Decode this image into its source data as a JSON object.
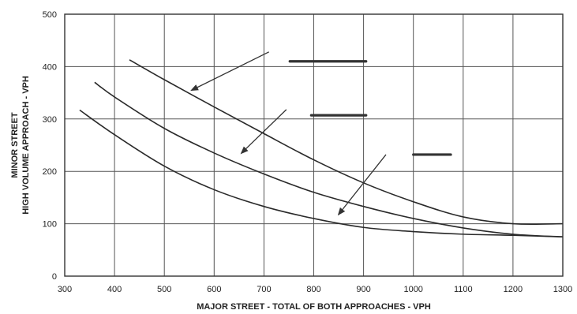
{
  "chart_data": {
    "type": "line",
    "title": "",
    "xlabel": "MAJOR STREET - TOTAL OF BOTH APPROACHES - VPH",
    "ylabel_line1": "MINOR STREET",
    "ylabel_line2": "HIGH VOLUME APPROACH - VPH",
    "xlim": [
      300,
      1300
    ],
    "ylim": [
      0,
      500
    ],
    "x_ticks": [
      300,
      400,
      500,
      600,
      700,
      800,
      900,
      1000,
      1100,
      1200,
      1300
    ],
    "y_ticks": [
      0,
      100,
      200,
      300,
      400,
      500
    ],
    "grid": true,
    "series": [
      {
        "points": [
          [
            430,
            413
          ],
          [
            500,
            375
          ],
          [
            600,
            323
          ],
          [
            700,
            272
          ],
          [
            800,
            222
          ],
          [
            900,
            178
          ],
          [
            1000,
            142
          ],
          [
            1100,
            113
          ],
          [
            1200,
            100
          ],
          [
            1300,
            100
          ]
        ]
      },
      {
        "points": [
          [
            360,
            370
          ],
          [
            400,
            342
          ],
          [
            500,
            282
          ],
          [
            600,
            235
          ],
          [
            700,
            195
          ],
          [
            800,
            160
          ],
          [
            900,
            133
          ],
          [
            1000,
            110
          ],
          [
            1100,
            92
          ],
          [
            1200,
            80
          ],
          [
            1300,
            75
          ]
        ]
      },
      {
        "points": [
          [
            330,
            317
          ],
          [
            400,
            270
          ],
          [
            500,
            210
          ],
          [
            600,
            165
          ],
          [
            700,
            133
          ],
          [
            800,
            110
          ],
          [
            900,
            93
          ],
          [
            1000,
            85
          ],
          [
            1100,
            80
          ],
          [
            1200,
            78
          ],
          [
            1300,
            75
          ]
        ]
      }
    ],
    "annotation_arrows": [
      {
        "from": [
          710,
          428
        ],
        "to": [
          555,
          355
        ]
      },
      {
        "from": [
          745,
          318
        ],
        "to": [
          655,
          235
        ]
      },
      {
        "from": [
          945,
          232
        ],
        "to": [
          850,
          118
        ]
      }
    ],
    "redaction_marks": [
      {
        "x": [
          752,
          905
        ],
        "y": 410
      },
      {
        "x": [
          795,
          905
        ],
        "y": 307
      },
      {
        "x": [
          1000,
          1075
        ],
        "y": 232
      }
    ]
  }
}
